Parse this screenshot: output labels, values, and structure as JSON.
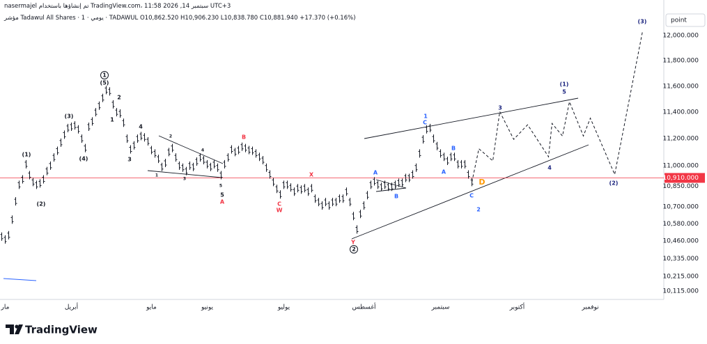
{
  "header": {
    "line1": "nasermajel تم إنشاؤها باستخدام TradingView.com، 11:58 2026 ,14 سبتمبر UTC+3",
    "line2": "مؤشر Tadawul All Shares · 1 · يومي · TADAWUL  O10,862.520  H10,906.230  L10,838.780  C10,881.940  +17.370 (+0.16%)"
  },
  "axis_unit": "point",
  "logo": "TradingView",
  "chart_data": {
    "type": "ohlc",
    "log": true,
    "grid": false,
    "color": "#131722",
    "categories": [
      null,
      "مار",
      null,
      null,
      null,
      null,
      null,
      null,
      null,
      null,
      null,
      null,
      null,
      null,
      null,
      null,
      null,
      null,
      null,
      null,
      "أبريل",
      null,
      null,
      null,
      null,
      null,
      null,
      null,
      null,
      null,
      null,
      null,
      null,
      null,
      null,
      null,
      null,
      null,
      null,
      null,
      null,
      null,
      null,
      "مايو",
      null,
      null,
      null,
      null,
      null,
      null,
      null,
      null,
      null,
      null,
      null,
      null,
      null,
      null,
      null,
      "يونيو",
      null,
      null,
      null,
      null,
      null,
      null,
      null,
      null,
      null,
      null,
      null,
      null,
      null,
      null,
      null,
      null,
      null,
      null,
      null,
      null,
      null,
      "يوليو",
      null,
      null,
      null,
      null,
      null,
      null,
      null,
      null,
      null,
      null,
      null,
      null,
      null,
      null,
      null,
      null,
      null,
      null,
      null,
      null,
      null,
      null,
      "أغسطس",
      null,
      null,
      null,
      null,
      null,
      null,
      null,
      null,
      null,
      null,
      null,
      null,
      null,
      null,
      null,
      null,
      null,
      null,
      null,
      null,
      null,
      "سبتمبر",
      null,
      null,
      null,
      null,
      null,
      null,
      null,
      null,
      null,
      null,
      null,
      null,
      null,
      null,
      null,
      null,
      null,
      null,
      null,
      null,
      null,
      "أكتوبر",
      null,
      null,
      null,
      null,
      null,
      null,
      null,
      null,
      null,
      null,
      null,
      null,
      null,
      null,
      null,
      null,
      null,
      null,
      null,
      null,
      "نوفمبر",
      null,
      null,
      null,
      null,
      null,
      null,
      null,
      null,
      null,
      null,
      null,
      null,
      null,
      null,
      null,
      null,
      null,
      null,
      null,
      null
    ],
    "values": [
      10490,
      10470,
      10500,
      10610,
      10740,
      10860,
      10900,
      11010,
      10930,
      10880,
      10860,
      10870,
      10900,
      10960,
      11000,
      11060,
      11110,
      11170,
      11230,
      11280,
      11290,
      11300,
      11270,
      11200,
      11130,
      11290,
      11330,
      11400,
      11450,
      11510,
      11570,
      11560,
      11460,
      11400,
      11390,
      11320,
      11200,
      11120,
      11150,
      11200,
      11220,
      11210,
      11180,
      11115,
      11090,
      11050,
      10990,
      11020,
      11100,
      11130,
      11060,
      11000,
      10985,
      10960,
      11000,
      10990,
      11030,
      11060,
      11040,
      11010,
      10990,
      11010,
      10985,
      10930,
      11010,
      11060,
      11120,
      11100,
      11115,
      11140,
      11130,
      11115,
      11110,
      11090,
      11065,
      11040,
      10985,
      10935,
      10880,
      10830,
      10790,
      10860,
      10860,
      10840,
      10810,
      10835,
      10825,
      10835,
      10810,
      10835,
      10760,
      10735,
      10710,
      10735,
      10710,
      10735,
      10735,
      10760,
      10760,
      10810,
      10735,
      10635,
      10540,
      10650,
      10710,
      10785,
      10860,
      10885,
      10860,
      10845,
      10860,
      10845,
      10845,
      10860,
      10875,
      10875,
      10910,
      10910,
      10935,
      10985,
      11090,
      11195,
      11270,
      11280,
      11200,
      11145,
      11090,
      11065,
      11035,
      11065,
      11065,
      11010,
      11010,
      11010,
      10935,
      10880,
      null,
      null,
      null,
      null,
      null,
      null,
      null,
      null,
      null,
      null,
      null,
      null,
      null,
      null,
      null,
      null,
      null,
      null,
      null,
      null,
      null,
      null,
      null,
      null,
      null,
      null,
      null,
      null,
      null,
      null,
      null,
      null,
      null,
      null,
      null,
      null,
      null,
      null,
      null,
      null,
      null,
      null,
      null,
      null,
      null,
      null,
      null,
      null,
      null,
      null,
      null,
      null,
      null,
      null
    ],
    "projection": {
      "x": [
        135,
        137,
        141,
        143,
        147,
        151,
        157,
        158,
        161,
        163,
        167,
        169,
        176,
        184
      ],
      "values": [
        10880,
        11125,
        11035,
        11405,
        11195,
        11305,
        11065,
        11315,
        11220,
        11480,
        11220,
        11355,
        10935,
        12035
      ]
    },
    "ylim": [
      10058,
      12289
    ],
    "yticks": [
      {
        "value": 12000,
        "label": "12,000.000"
      },
      {
        "value": 11800,
        "label": "11,800.000"
      },
      {
        "value": 11600,
        "label": "11,600.000"
      },
      {
        "value": 11400,
        "label": "11,400.000"
      },
      {
        "value": 11200,
        "label": "11,200.000"
      },
      {
        "value": 11000,
        "label": "11,000.000"
      },
      {
        "value": 10850,
        "label": "10,850.000"
      },
      {
        "value": 10700,
        "label": "10,700.000"
      },
      {
        "value": 10580,
        "label": "10,580.000"
      },
      {
        "value": 10460,
        "label": "10,460.000"
      },
      {
        "value": 10335,
        "label": "10,335.000"
      },
      {
        "value": 10215,
        "label": "10,215.000"
      },
      {
        "value": 10115,
        "label": "10,115.000"
      }
    ],
    "price_line": {
      "value": 10910,
      "label": "10,910.000",
      "color": "#f23645"
    },
    "annotations": [
      "1",
      "(5)",
      "2",
      "1",
      "(3)",
      "(1)",
      "(2)",
      "(4)",
      "4",
      "3",
      "2",
      "1",
      "3",
      "4",
      "5",
      "5",
      "A",
      "B",
      "C",
      "W",
      "X",
      "Y",
      "2",
      "A",
      "B",
      "1",
      "C",
      "B",
      "A",
      "C",
      "D",
      "2",
      "3",
      "4",
      "(1)",
      "5",
      "(2)",
      "(3)"
    ]
  }
}
